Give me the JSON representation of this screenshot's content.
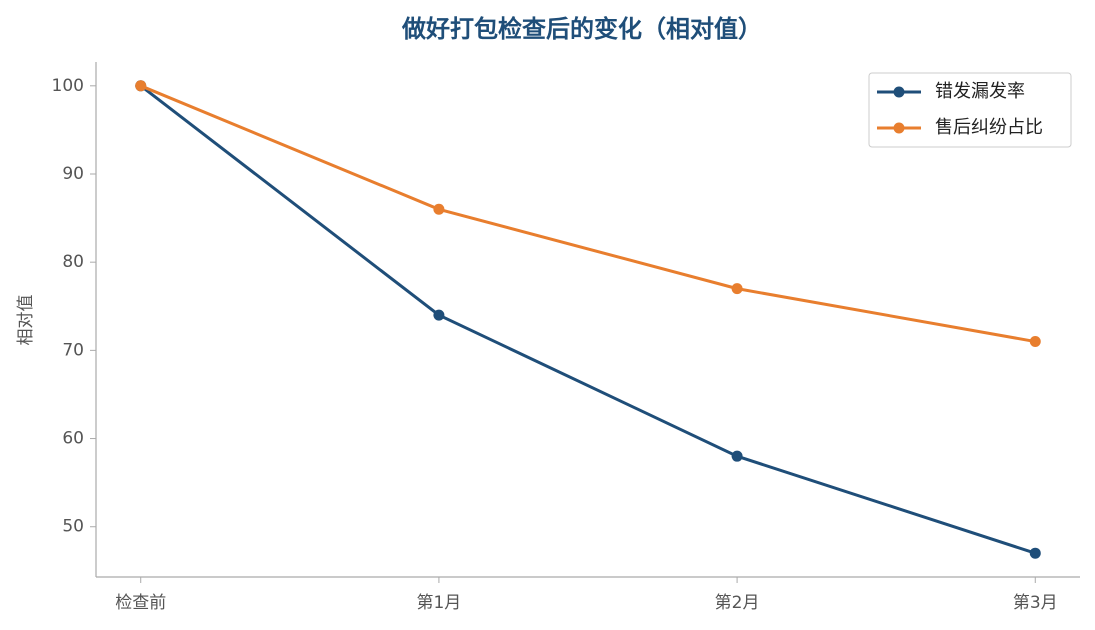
{
  "chart_data": {
    "type": "line",
    "title": "做好打包检查后的变化（相对值）",
    "y_label": "相对值",
    "categories": [
      "检查前",
      "第1月",
      "第2月",
      "第3月"
    ],
    "series": [
      {
        "name": "错发漏发率",
        "color": "#1f4e79",
        "values": [
          100,
          74,
          58,
          47
        ]
      },
      {
        "name": "售后纠纷占比",
        "color": "#e87e2e",
        "values": [
          100,
          86,
          77,
          71
        ]
      }
    ],
    "ylim": [
      44.3,
      102.7
    ],
    "yticks": [
      50,
      60,
      70,
      80,
      90,
      100
    ],
    "legend": "upper right",
    "grid": false
  }
}
